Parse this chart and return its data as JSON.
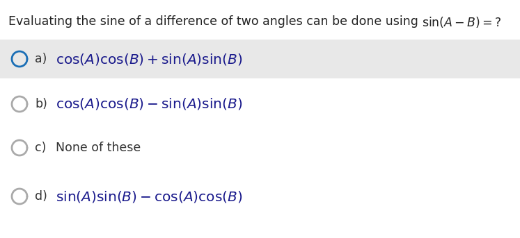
{
  "title_plain": "Evaluating the sine of a difference of two angles can be done using ",
  "title_math": "$\\sin(A - B) =?$",
  "background_color": "#ffffff",
  "highlight_color": "#e8e8e8",
  "options": [
    {
      "label": "a)",
      "math": "$\\cos(A)\\cos(B) + \\sin(A)\\sin(B)$",
      "plain_text": null,
      "highlighted": true,
      "circle_color": "#1a6eb5",
      "circle_fill": false
    },
    {
      "label": "b)",
      "math": "$\\cos(A)\\cos(B) - \\sin(A)\\sin(B)$",
      "plain_text": null,
      "highlighted": false,
      "circle_color": "#aaaaaa",
      "circle_fill": false
    },
    {
      "label": "c)",
      "math": null,
      "plain_text": "None of these",
      "highlighted": false,
      "circle_color": "#aaaaaa",
      "circle_fill": false
    },
    {
      "label": "d)",
      "math": "$\\sin(A)\\sin(B) - \\cos(A)\\cos(B)$",
      "plain_text": null,
      "highlighted": false,
      "circle_color": "#aaaaaa",
      "circle_fill": false
    }
  ],
  "title_fontsize": 12.5,
  "option_fontsize": 14.5,
  "label_fontsize": 12.5,
  "fig_width": 7.47,
  "fig_height": 3.43,
  "dpi": 100
}
